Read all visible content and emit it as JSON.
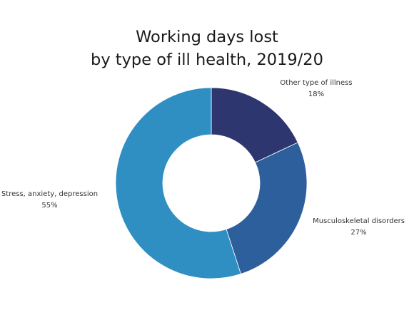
{
  "chart_data": {
    "type": "pie",
    "style": "donut",
    "title_lines": [
      "Working days lost",
      "by type of ill health, 2019/20"
    ],
    "slices": [
      {
        "label": "Other type of illness",
        "value": 18,
        "value_label": "18%",
        "color": "#2e3670"
      },
      {
        "label": "Musculoskeletal disorders",
        "value": 27,
        "value_label": "27%",
        "color": "#2e5f9d"
      },
      {
        "label": "Stress, anxiety, depression",
        "value": 55,
        "value_label": "55%",
        "color": "#2f8fc2"
      }
    ]
  }
}
